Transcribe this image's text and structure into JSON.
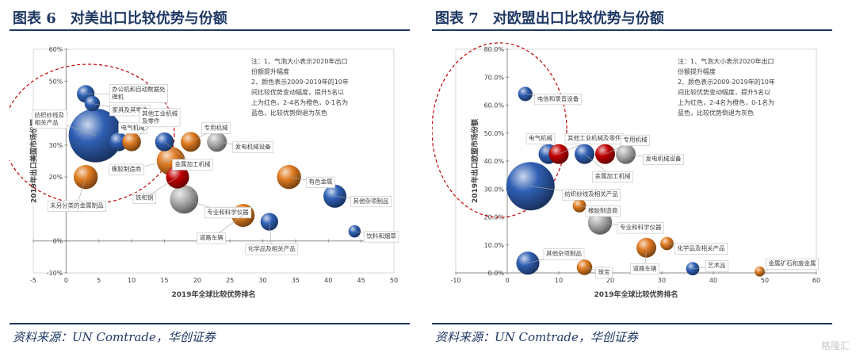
{
  "watermark": "格隆汇",
  "colors": {
    "red": "#c00000",
    "orange": "#e07b20",
    "blue": "#2f5fb3",
    "gray": "#b0b0b0"
  },
  "chart_data": [
    {
      "type": "scatter",
      "title": "图表 6　对美出口比较优势与份额",
      "source": "资料来源：UN Comtrade，华创证券",
      "xlabel": "2019年全球比较优势排名",
      "ylabel": "2019年出口美国市场份额",
      "xlim": [
        -5,
        50
      ],
      "ylim": [
        -10,
        60
      ],
      "xticks": [
        "-5",
        "0",
        "5",
        "10",
        "15",
        "20",
        "25",
        "30",
        "35",
        "40",
        "45",
        "50"
      ],
      "yticks": [
        "-10%",
        "0%",
        "10%",
        "20%",
        "30%",
        "40%",
        "50%",
        "60%"
      ],
      "note": [
        "注：1、气泡大小表示2020年出口",
        "份额提升幅度",
        "2、颜色表示2009-2019年的10年",
        "间比较优势变动幅度，提升5名以",
        "上为红色，2-4名为橙色，0-1名为",
        "蓝色，比较优势倒退为灰色"
      ],
      "points": [
        {
          "label": "办公机和自动数据处理机",
          "label_lines": [
            "办公机和自动数据处",
            "理机"
          ],
          "x": 3,
          "y": 46,
          "size": 0.18,
          "color": "blue"
        },
        {
          "label": "家具及其零件",
          "label_lines": [
            "家具及其零件"
          ],
          "x": 4,
          "y": 43,
          "size": 0.14,
          "color": "blue"
        },
        {
          "label": "纺织纱线及相关产品",
          "label_lines": [
            "纺织纱线及",
            "相关产品"
          ],
          "x": 4.5,
          "y": 33,
          "size": 0.85,
          "color": "blue"
        },
        {
          "label": "电气机械",
          "label_lines": [
            "电气机械"
          ],
          "x": 8,
          "y": 31,
          "size": 0.2,
          "color": "blue"
        },
        {
          "label": "其他工业机械及零件",
          "label_lines": [
            "其他工业机械",
            "及零件"
          ],
          "x": 10,
          "y": 31,
          "size": 0.2,
          "color": "orange"
        },
        {
          "label": "金属加工机械",
          "label_lines": [
            "金属加工机械"
          ],
          "x": 15,
          "y": 31,
          "size": 0.2,
          "color": "blue"
        },
        {
          "label": "专用机械",
          "label_lines": [
            "专用机械"
          ],
          "x": 19,
          "y": 31,
          "size": 0.22,
          "color": "orange"
        },
        {
          "label": "发电机械设备",
          "label_lines": [
            "发电机械设备"
          ],
          "x": 23,
          "y": 31,
          "size": 0.22,
          "color": "gray"
        },
        {
          "label": "橡胶制造商",
          "label_lines": [
            "橡胶制造商"
          ],
          "x": 16,
          "y": 25,
          "size": 0.38,
          "color": "orange"
        },
        {
          "label": "铁和钢",
          "label_lines": [
            "铁和钢"
          ],
          "x": 17,
          "y": 20,
          "size": 0.28,
          "color": "red"
        },
        {
          "label": "未另分类的金属制品",
          "label_lines": [
            "未另分类的金属制品"
          ],
          "x": 3,
          "y": 20,
          "size": 0.3,
          "color": "orange"
        },
        {
          "label": "专业和科学仪器",
          "label_lines": [
            "专业和科学仪器"
          ],
          "x": 18,
          "y": 13,
          "size": 0.38,
          "color": "gray"
        },
        {
          "label": "有色金属",
          "label_lines": [
            "有色金属"
          ],
          "x": 34,
          "y": 20,
          "size": 0.3,
          "color": "orange"
        },
        {
          "label": "其他杂项制品",
          "label_lines": [
            "其他杂项制品"
          ],
          "x": 41,
          "y": 14,
          "size": 0.28,
          "color": "blue"
        },
        {
          "label": "道路车辆",
          "label_lines": [
            "道路车辆"
          ],
          "x": 27,
          "y": 8,
          "size": 0.28,
          "color": "orange"
        },
        {
          "label": "化学品及相关产品",
          "label_lines": [
            "化学品及相关产品"
          ],
          "x": 31,
          "y": 6,
          "size": 0.18,
          "color": "blue"
        },
        {
          "label": "饮料和烟草",
          "label_lines": [
            "饮料和烟草"
          ],
          "x": 44,
          "y": 3,
          "size": 0.08,
          "color": "blue"
        }
      ]
    },
    {
      "type": "scatter",
      "title": "图表 7　对欧盟出口比较优势与份额",
      "source": "资料来源：UN Comtrade，华创证券",
      "xlabel": "2019年全球比较优势排名",
      "ylabel": "2019年出口欧盟市场份额",
      "xlim": [
        -10,
        60
      ],
      "ylim": [
        0,
        80
      ],
      "xticks": [
        "-10",
        "0",
        "10",
        "20",
        "30",
        "40",
        "50",
        "60"
      ],
      "yticks": [
        "0.0%",
        "10.0%",
        "20.0%",
        "30.0%",
        "40.0%",
        "50.0%",
        "60.0%",
        "70.0%",
        "80.0%"
      ],
      "note": [
        "注：1、气泡大小表示2020年出口",
        "份额提升幅度",
        "2、颜色表示2009-2019年的10年",
        "间比较优势变动幅度，提升5名以",
        "上为红色，2-4名为橙色，0-1名为",
        "蓝色，比较优势倒退为灰色"
      ],
      "points": [
        {
          "label": "电信和录音设备",
          "label_lines": [
            "电信和录音设备"
          ],
          "x": 3.5,
          "y": 64,
          "size": 0.12,
          "color": "blue"
        },
        {
          "label": "电气机械",
          "label_lines": [
            "电气机械"
          ],
          "x": 8,
          "y": 42.5,
          "size": 0.22,
          "color": "blue"
        },
        {
          "label": "其他工业机械及零件",
          "label_lines": [
            "其他工业机械及零件"
          ],
          "x": 10,
          "y": 42.5,
          "size": 0.22,
          "color": "red"
        },
        {
          "label": "金属加工机械",
          "label_lines": [
            "金属加工机械"
          ],
          "x": 15,
          "y": 42.5,
          "size": 0.22,
          "color": "blue"
        },
        {
          "label": "专用机械",
          "label_lines": [
            "专用机械"
          ],
          "x": 19,
          "y": 42.5,
          "size": 0.22,
          "color": "red"
        },
        {
          "label": "发电机械设备",
          "label_lines": [
            "发电机械设备"
          ],
          "x": 23,
          "y": 42.5,
          "size": 0.22,
          "color": "gray"
        },
        {
          "label": "纺织纱线及相关产品",
          "label_lines": [
            "纺织纱线及相关产品"
          ],
          "x": 4.5,
          "y": 31,
          "size": 0.75,
          "color": "blue"
        },
        {
          "label": "橡胶制造商",
          "label_lines": [
            "橡胶制造商"
          ],
          "x": 14,
          "y": 24,
          "size": 0.1,
          "color": "orange"
        },
        {
          "label": "专业和科学仪器",
          "label_lines": [
            "专业和科学仪器"
          ],
          "x": 18,
          "y": 18,
          "size": 0.3,
          "color": "gray"
        },
        {
          "label": "化学品及相关产品",
          "label_lines": [
            "化学品及相关产品"
          ],
          "x": 31,
          "y": 10.5,
          "size": 0.1,
          "color": "orange"
        },
        {
          "label": "其他杂项制品",
          "label_lines": [
            "其他杂项制品"
          ],
          "x": 4,
          "y": 3.5,
          "size": 0.28,
          "color": "blue"
        },
        {
          "label": "珠宝",
          "label_lines": [
            "珠宝"
          ],
          "x": 15,
          "y": 2,
          "size": 0.14,
          "color": "orange"
        },
        {
          "label": "道路车辆",
          "label_lines": [
            "道路车辆"
          ],
          "x": 27,
          "y": 9,
          "size": 0.22,
          "color": "orange"
        },
        {
          "label": "艺术品",
          "label_lines": [
            "艺术品"
          ],
          "x": 36,
          "y": 1.5,
          "size": 0.1,
          "color": "blue"
        },
        {
          "label": "金属矿石和废金属",
          "label_lines": [
            "金属矿石和废金属"
          ],
          "x": 49,
          "y": 0.5,
          "size": 0.04,
          "color": "orange"
        }
      ]
    }
  ]
}
